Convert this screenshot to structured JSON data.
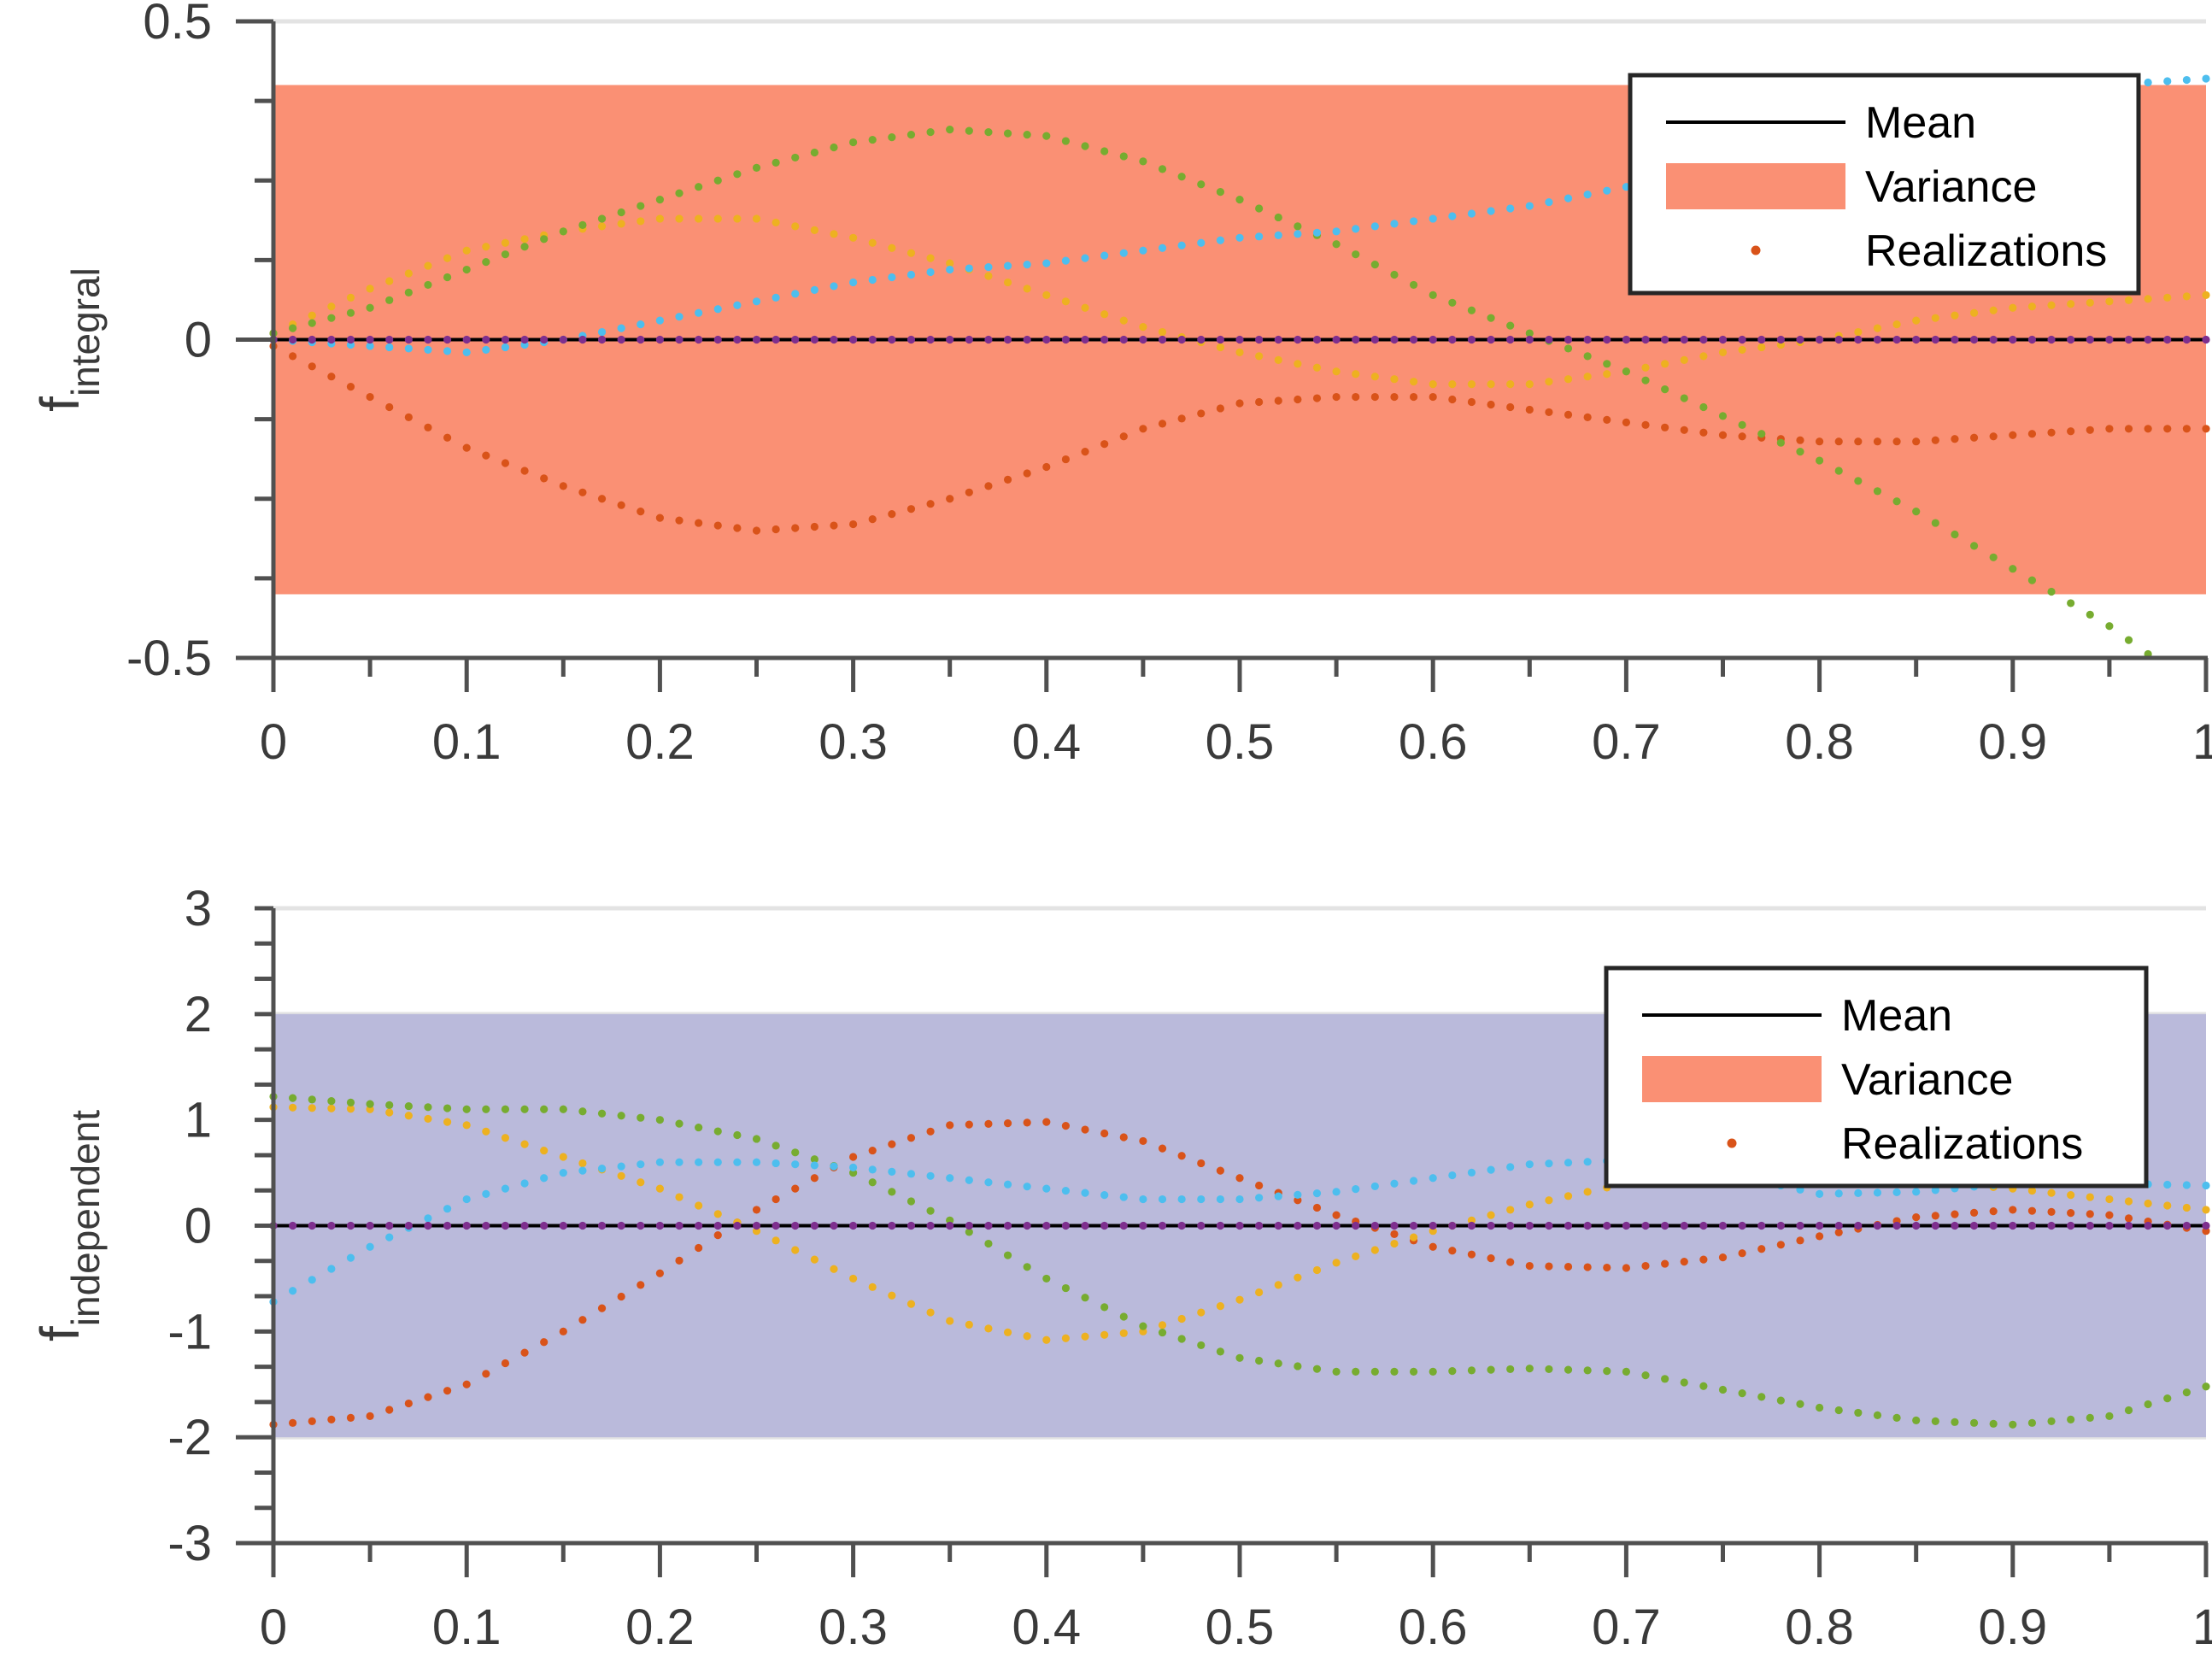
{
  "chart_data": [
    {
      "type": "line",
      "ylabel_main": "f",
      "ylabel_sub": "integral",
      "xlim": [
        0,
        1
      ],
      "ylim": [
        -0.5,
        0.5
      ],
      "xticks": [
        0,
        0.1,
        0.2,
        0.3,
        0.4,
        0.5,
        0.6,
        0.7,
        0.8,
        0.9,
        1
      ],
      "xtick_labels": [
        "0",
        "0.1",
        "0.2",
        "0.3",
        "0.4",
        "0.5",
        "0.6",
        "0.7",
        "0.8",
        "0.9",
        "1"
      ],
      "yticks": [
        -0.5,
        0,
        0.5
      ],
      "ytick_labels": [
        "-0.5",
        "0",
        "0.5"
      ],
      "y_minor_step": 0.125,
      "grid": "y-major",
      "band": {
        "lower": -0.4,
        "upper": 0.4,
        "color": "#fa9074"
      },
      "mean": {
        "value": 0,
        "color": "#000000"
      },
      "legend": {
        "placement": "top-right",
        "entries": [
          "Mean",
          "Variance",
          "Realizations"
        ],
        "variance_swatch": "#fa9074",
        "realization_swatch": "#d95319"
      },
      "series": [
        {
          "color": "#d95319",
          "x": [
            0,
            0.05,
            0.1,
            0.15,
            0.2,
            0.25,
            0.3,
            0.35,
            0.4,
            0.45,
            0.5,
            0.55,
            0.6,
            0.65,
            0.7,
            0.75,
            0.8,
            0.85,
            0.9,
            0.95,
            1
          ],
          "y": [
            -0.01,
            -0.09,
            -0.17,
            -0.23,
            -0.28,
            -0.3,
            -0.29,
            -0.25,
            -0.2,
            -0.14,
            -0.1,
            -0.09,
            -0.09,
            -0.11,
            -0.13,
            -0.15,
            -0.16,
            -0.16,
            -0.15,
            -0.14,
            -0.14
          ]
        },
        {
          "color": "#edb120",
          "x": [
            0,
            0.05,
            0.1,
            0.15,
            0.2,
            0.25,
            0.3,
            0.35,
            0.4,
            0.45,
            0.5,
            0.55,
            0.6,
            0.65,
            0.7,
            0.75,
            0.8,
            0.85,
            0.9,
            0.95,
            1
          ],
          "y": [
            0.01,
            0.08,
            0.14,
            0.17,
            0.19,
            0.19,
            0.16,
            0.12,
            0.07,
            0.02,
            -0.02,
            -0.05,
            -0.07,
            -0.07,
            -0.05,
            -0.02,
            0.0,
            0.03,
            0.05,
            0.06,
            0.07
          ]
        },
        {
          "color": "#77ac30",
          "x": [
            0,
            0.05,
            0.1,
            0.15,
            0.2,
            0.25,
            0.3,
            0.35,
            0.4,
            0.45,
            0.5,
            0.55,
            0.6,
            0.65,
            0.7,
            0.75,
            0.8,
            0.85,
            0.9,
            0.95,
            1
          ],
          "y": [
            0.01,
            0.05,
            0.11,
            0.17,
            0.22,
            0.27,
            0.31,
            0.33,
            0.32,
            0.28,
            0.22,
            0.15,
            0.07,
            0.01,
            -0.05,
            -0.12,
            -0.19,
            -0.27,
            -0.36,
            -0.45,
            -0.56
          ]
        },
        {
          "color": "#4dbeee",
          "x": [
            0,
            0.05,
            0.1,
            0.15,
            0.2,
            0.25,
            0.3,
            0.35,
            0.4,
            0.45,
            0.5,
            0.55,
            0.6,
            0.65,
            0.7,
            0.75,
            0.8,
            0.85,
            0.9,
            0.95,
            1
          ],
          "y": [
            0,
            -0.01,
            -0.02,
            0.0,
            0.03,
            0.06,
            0.09,
            0.11,
            0.12,
            0.14,
            0.16,
            0.17,
            0.19,
            0.21,
            0.24,
            0.27,
            0.31,
            0.35,
            0.38,
            0.4,
            0.41
          ]
        },
        {
          "color": "#7e2f8e",
          "x": [
            0,
            0.25,
            0.5,
            0.75,
            1
          ],
          "y": [
            0,
            0,
            0,
            0,
            0
          ]
        }
      ]
    },
    {
      "type": "line",
      "ylabel_main": "f",
      "ylabel_sub": "independent",
      "xlim": [
        0,
        1
      ],
      "ylim": [
        -3,
        3
      ],
      "xticks": [
        0,
        0.1,
        0.2,
        0.3,
        0.4,
        0.5,
        0.6,
        0.7,
        0.8,
        0.9,
        1
      ],
      "xtick_labels": [
        "0",
        "0.1",
        "0.2",
        "0.3",
        "0.4",
        "0.5",
        "0.6",
        "0.7",
        "0.8",
        "0.9",
        "1"
      ],
      "yticks": [
        -3,
        -2,
        -1,
        0,
        1,
        2,
        3
      ],
      "ytick_labels": [
        "-3",
        "-2",
        "-1",
        "0",
        "1",
        "2",
        "3"
      ],
      "y_minor_step": 0.333333,
      "grid": "y-major",
      "band": {
        "lower": -2,
        "upper": 2,
        "color": "#babadb"
      },
      "mean": {
        "value": 0,
        "color": "#000000"
      },
      "legend": {
        "placement": "top-right",
        "entries": [
          "Mean",
          "Variance",
          "Realizations"
        ],
        "variance_swatch": "#fa9074",
        "realization_swatch": "#d95319"
      },
      "series": [
        {
          "color": "#d95319",
          "x": [
            0,
            0.05,
            0.1,
            0.15,
            0.2,
            0.25,
            0.3,
            0.35,
            0.4,
            0.45,
            0.5,
            0.55,
            0.6,
            0.65,
            0.7,
            0.75,
            0.8,
            0.85,
            0.9,
            0.95,
            1
          ],
          "y": [
            -1.88,
            -1.8,
            -1.5,
            -1.0,
            -0.45,
            0.15,
            0.65,
            0.95,
            0.98,
            0.8,
            0.45,
            0.1,
            -0.2,
            -0.38,
            -0.4,
            -0.3,
            -0.1,
            0.08,
            0.15,
            0.1,
            -0.05
          ]
        },
        {
          "color": "#edb120",
          "x": [
            0,
            0.05,
            0.1,
            0.15,
            0.2,
            0.25,
            0.3,
            0.35,
            0.4,
            0.45,
            0.5,
            0.55,
            0.6,
            0.65,
            0.7,
            0.75,
            0.8,
            0.85,
            0.9,
            0.95,
            1
          ],
          "y": [
            1.12,
            1.1,
            0.95,
            0.65,
            0.35,
            -0.05,
            -0.5,
            -0.9,
            -1.08,
            -1.0,
            -0.7,
            -0.35,
            -0.05,
            0.2,
            0.4,
            0.5,
            0.5,
            0.42,
            0.35,
            0.25,
            0.15
          ]
        },
        {
          "color": "#77ac30",
          "x": [
            0,
            0.05,
            0.1,
            0.15,
            0.2,
            0.25,
            0.3,
            0.35,
            0.4,
            0.45,
            0.5,
            0.55,
            0.6,
            0.65,
            0.7,
            0.75,
            0.8,
            0.85,
            0.9,
            0.95,
            1
          ],
          "y": [
            1.22,
            1.15,
            1.1,
            1.1,
            1.0,
            0.82,
            0.5,
            0.05,
            -0.5,
            -0.95,
            -1.25,
            -1.38,
            -1.38,
            -1.35,
            -1.38,
            -1.55,
            -1.72,
            -1.84,
            -1.88,
            -1.8,
            -1.52
          ]
        },
        {
          "color": "#4dbeee",
          "x": [
            0,
            0.05,
            0.1,
            0.15,
            0.2,
            0.25,
            0.3,
            0.35,
            0.4,
            0.45,
            0.5,
            0.55,
            0.6,
            0.65,
            0.7,
            0.75,
            0.8,
            0.85,
            0.9,
            0.95,
            1
          ],
          "y": [
            -0.72,
            -0.2,
            0.25,
            0.5,
            0.6,
            0.6,
            0.55,
            0.45,
            0.35,
            0.25,
            0.25,
            0.32,
            0.45,
            0.58,
            0.62,
            0.5,
            0.3,
            0.32,
            0.4,
            0.4,
            0.38
          ]
        },
        {
          "color": "#7e2f8e",
          "x": [
            0,
            0.25,
            0.5,
            0.75,
            1
          ],
          "y": [
            0,
            0,
            0,
            0,
            0
          ]
        }
      ]
    }
  ]
}
